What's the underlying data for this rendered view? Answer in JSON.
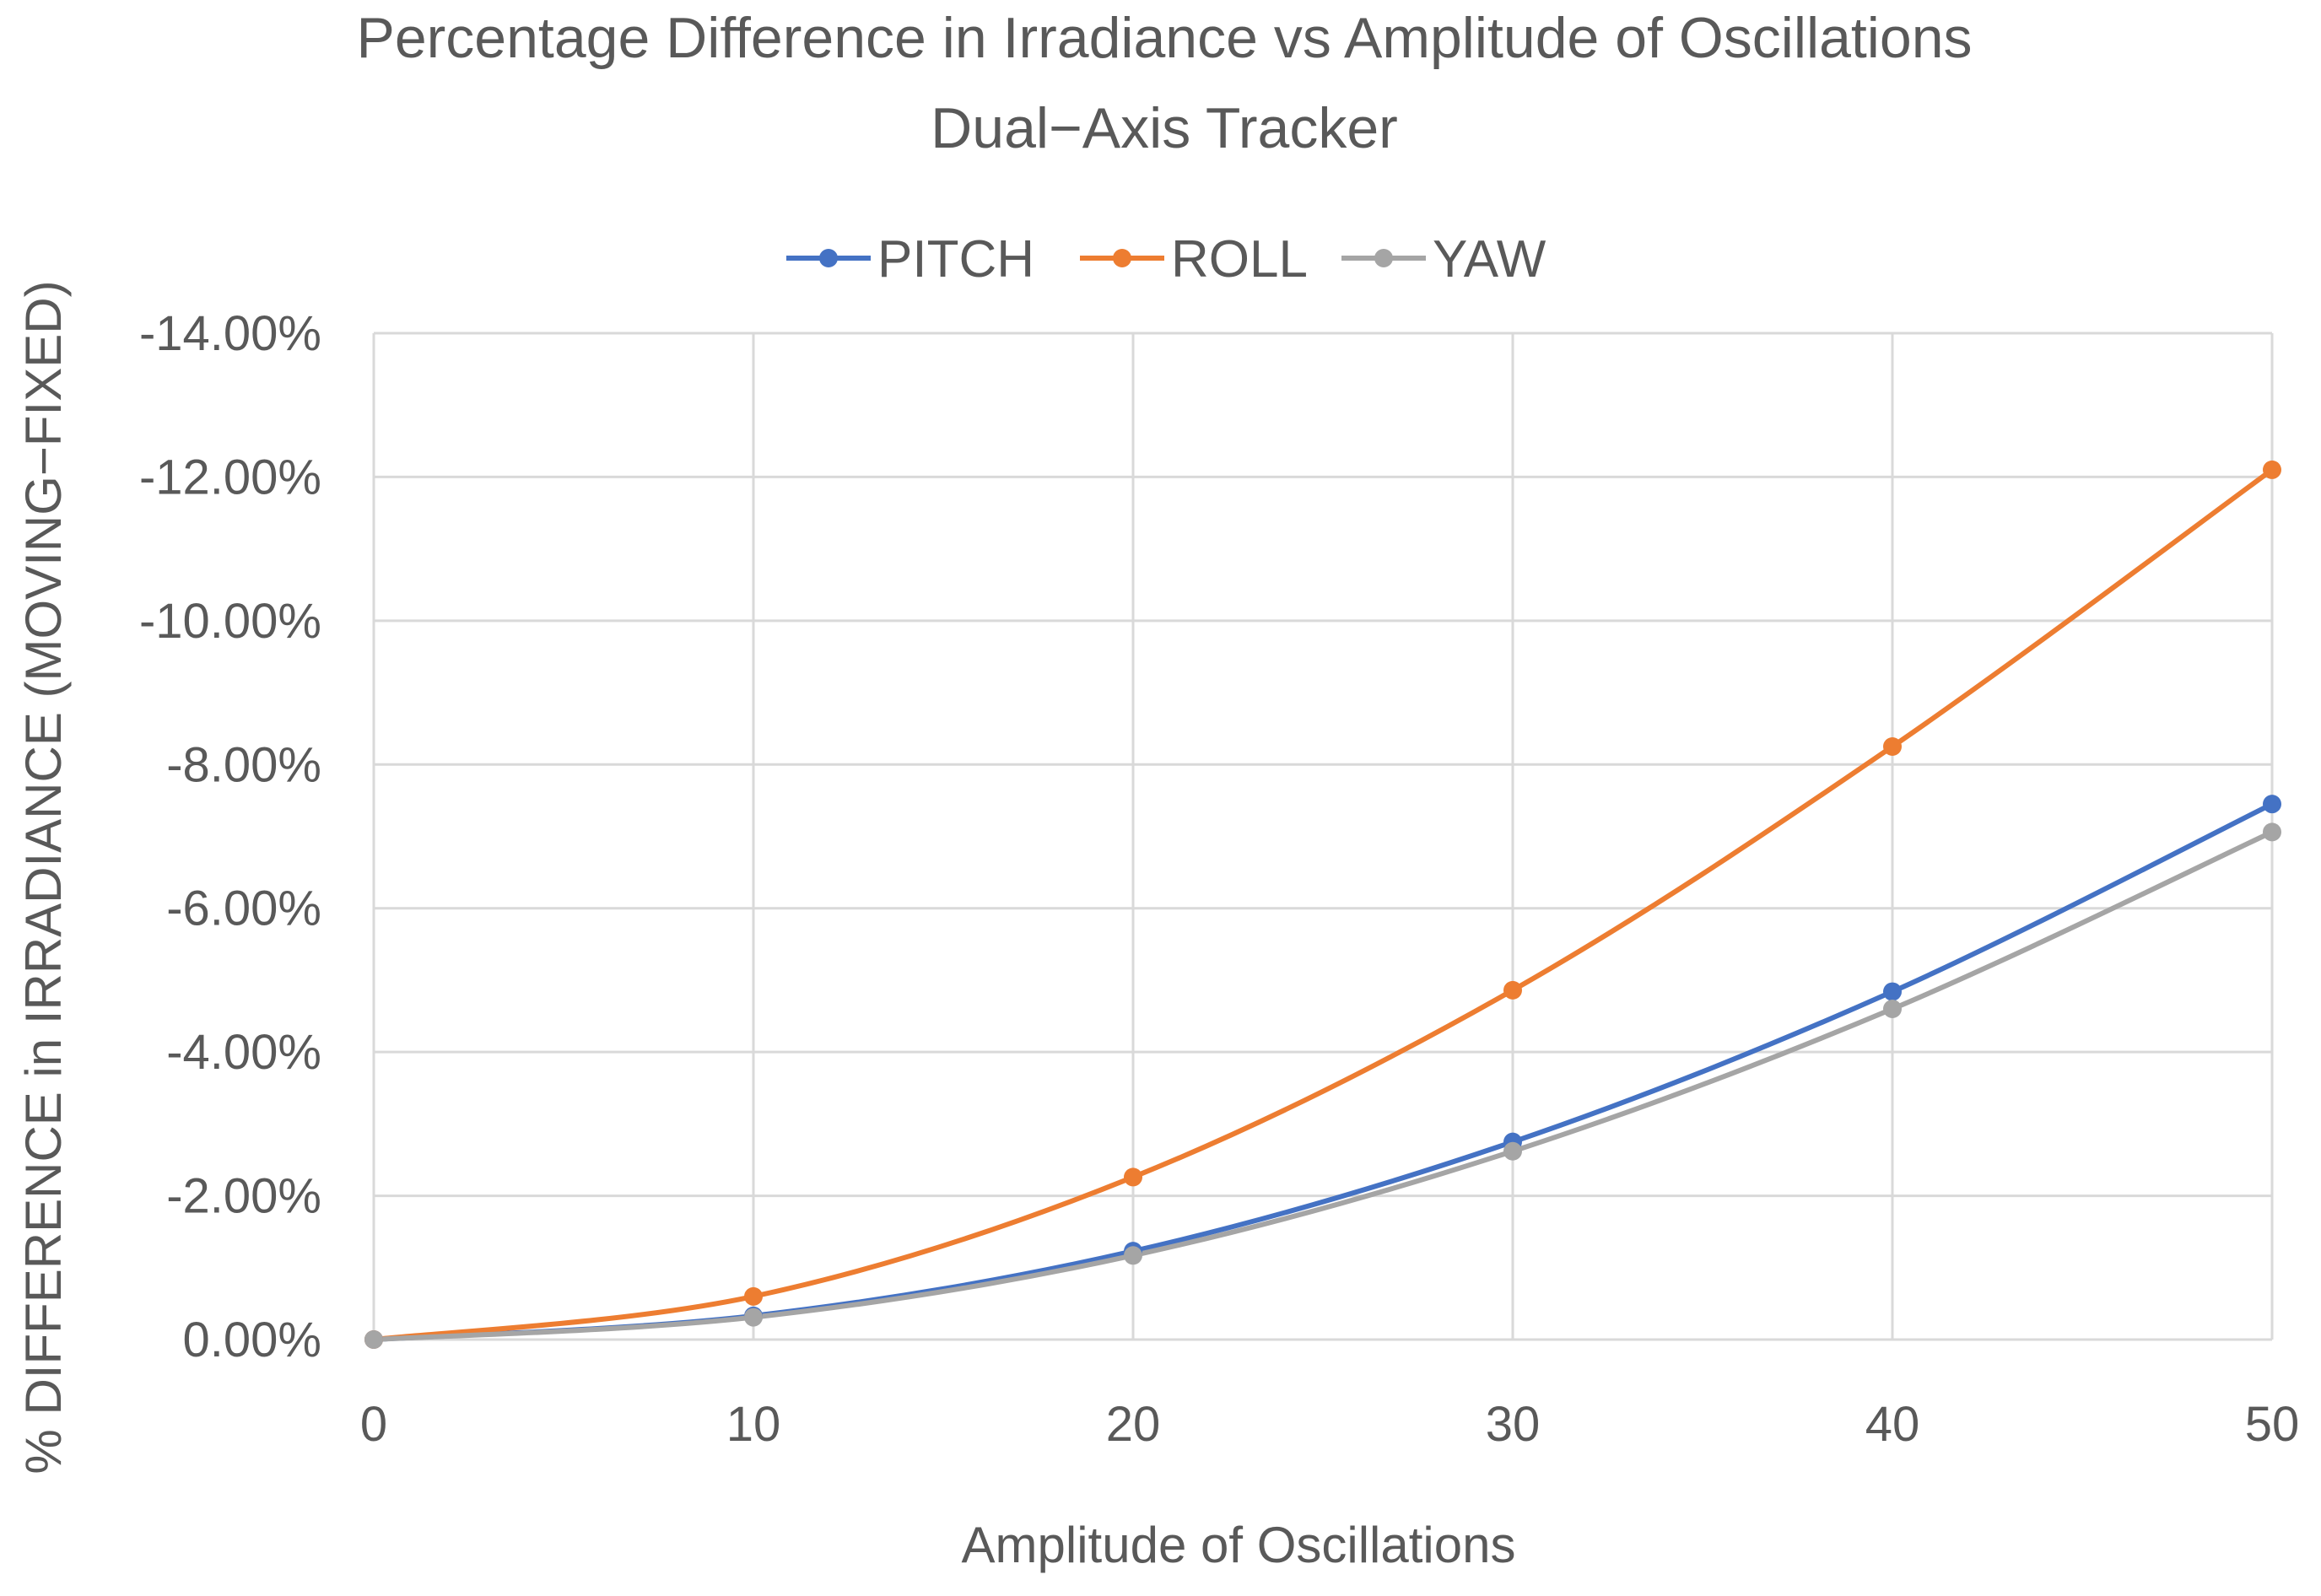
{
  "chart_data": {
    "type": "line",
    "title": "Percentage Difference in Irradiance vs Amplitude of Oscillations",
    "subtitle": "Dual−Axis Tracker",
    "xlabel": "Amplitude of Oscillations",
    "ylabel": "% DIFFERENCE in IRRADIANCE (MOVING−FIXED)",
    "x": [
      0,
      10,
      20,
      30,
      40,
      50
    ],
    "x_tick_labels": [
      "0",
      "10",
      "20",
      "30",
      "40",
      "50"
    ],
    "y_tick_labels": [
      "0.00%",
      "-2.00%",
      "-4.00%",
      "-6.00%",
      "-8.00%",
      "-10.00%",
      "-12.00%",
      "-14.00%"
    ],
    "y_tick_values": [
      0,
      -2,
      -4,
      -6,
      -8,
      -10,
      -12,
      -14
    ],
    "xlim": [
      0,
      50
    ],
    "ylim": [
      0,
      -14
    ],
    "y_axis_reversed": true,
    "grid": true,
    "legend_position": "top-center",
    "series": [
      {
        "name": "PITCH",
        "color": "#4472C4",
        "values": [
          0.0,
          -0.33,
          -1.23,
          -2.75,
          -4.84,
          -7.45
        ]
      },
      {
        "name": "ROLL",
        "color": "#ED7D31",
        "values": [
          0.0,
          -0.6,
          -2.26,
          -4.86,
          -8.25,
          -12.1
        ]
      },
      {
        "name": "YAW",
        "color": "#A5A5A5",
        "values": [
          0.0,
          -0.31,
          -1.17,
          -2.62,
          -4.6,
          -7.06
        ]
      }
    ]
  }
}
